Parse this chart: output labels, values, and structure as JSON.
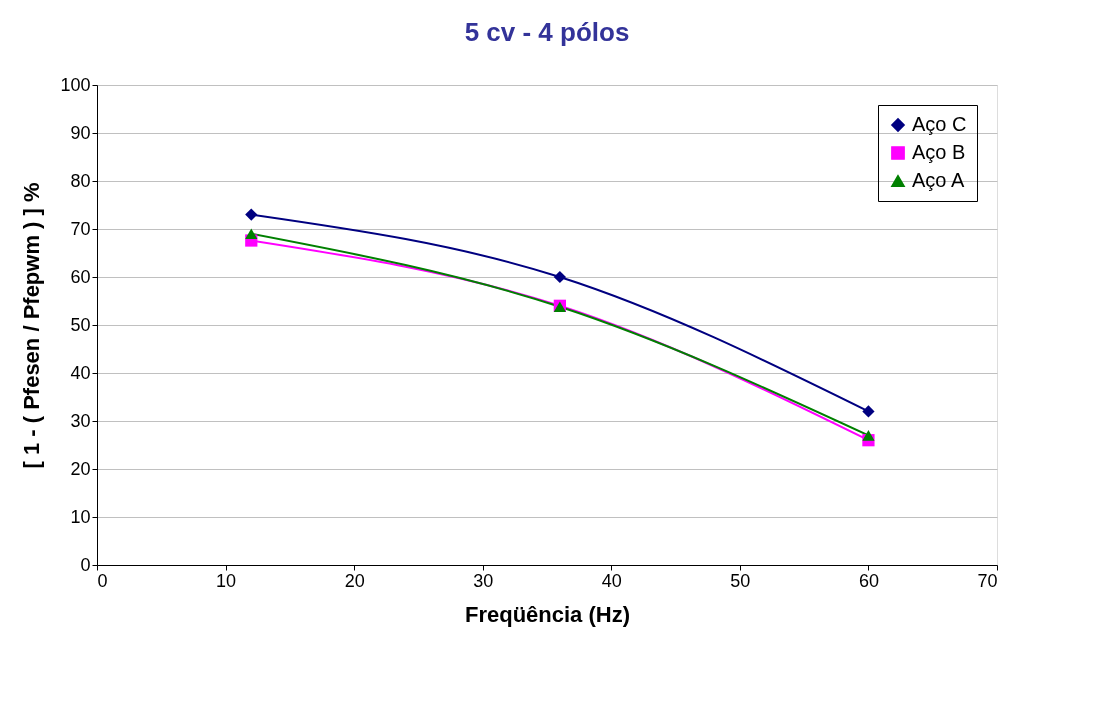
{
  "chart_data": {
    "type": "line",
    "title": "5 cv - 4 pólos",
    "xlabel": "Freqüência (Hz)",
    "ylabel": "[ 1 - ( Pfesen / Pfepwm ) ] %",
    "x": [
      12,
      36,
      60
    ],
    "series": [
      {
        "name": "Aço C",
        "color": "#000080",
        "marker": "diamond",
        "values": [
          73,
          60,
          32
        ]
      },
      {
        "name": "Aço B",
        "color": "#ff00ff",
        "marker": "square",
        "values": [
          67.6,
          54,
          26
        ]
      },
      {
        "name": "Aço A",
        "color": "#008000",
        "marker": "triangle",
        "values": [
          69,
          53.8,
          27
        ]
      }
    ],
    "xlim": [
      0,
      70
    ],
    "xticks": [
      0,
      10,
      20,
      30,
      40,
      50,
      60,
      70
    ],
    "ylim": [
      0,
      100
    ],
    "yticks": [
      0,
      10,
      20,
      30,
      40,
      50,
      60,
      70,
      80,
      90,
      100
    ],
    "grid": "y",
    "legend": "top right"
  }
}
